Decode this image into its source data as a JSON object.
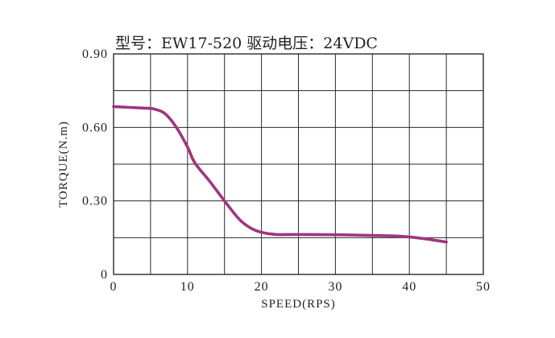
{
  "chart_data": {
    "type": "line",
    "title": "型号：EW17-520   驱动电压：24VDC",
    "xlabel": "SPEED(RPS)",
    "ylabel": "TORQUE(N.m)",
    "xlim": [
      0,
      50
    ],
    "ylim": [
      0,
      0.9
    ],
    "x_ticks": [
      0,
      10,
      20,
      30,
      40,
      50
    ],
    "x_tick_labels": [
      "0",
      "10",
      "20",
      "30",
      "40",
      "50"
    ],
    "y_ticks": [
      0,
      0.3,
      0.6,
      0.9
    ],
    "y_tick_labels": [
      "0",
      "0.30",
      "0.60",
      "0.90"
    ],
    "x_grid_step": 5,
    "y_grid_step": 0.15,
    "grid": true,
    "legend": "none",
    "series": [
      {
        "color": "#a0357e",
        "x": [
          0,
          2,
          4,
          5.5,
          7,
          8.5,
          10,
          11,
          13,
          15,
          17,
          18.5,
          20,
          22,
          25,
          30,
          35,
          38,
          40,
          42,
          44,
          45
        ],
        "y": [
          0.685,
          0.682,
          0.679,
          0.675,
          0.655,
          0.6,
          0.52,
          0.455,
          0.38,
          0.3,
          0.225,
          0.19,
          0.172,
          0.163,
          0.163,
          0.162,
          0.159,
          0.157,
          0.153,
          0.146,
          0.137,
          0.132
        ]
      }
    ]
  }
}
